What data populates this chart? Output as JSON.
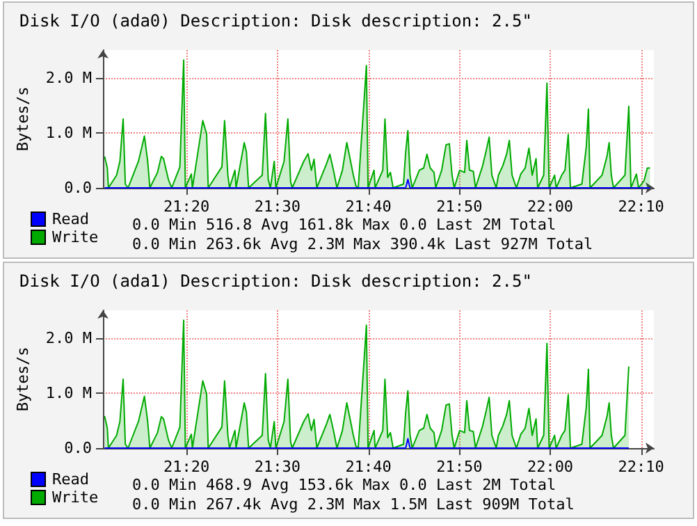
{
  "chart_data": [
    {
      "type": "area",
      "title": "Disk I/O (ada0) Description: Disk description: 2.5\"",
      "ylabel": "Bytes/s",
      "x": [
        21.183,
        21.188,
        21.19,
        21.205,
        21.211,
        21.217,
        21.221,
        21.226,
        21.245,
        21.251,
        21.256,
        21.262,
        21.266,
        21.28,
        21.287,
        21.291,
        21.3,
        21.306,
        21.321,
        21.328,
        21.331,
        21.342,
        21.344,
        21.363,
        21.37,
        21.373,
        21.398,
        21.403,
        21.409,
        21.412,
        21.422,
        21.424,
        21.439,
        21.443,
        21.447,
        21.472,
        21.478,
        21.483,
        21.487,
        21.494,
        21.497,
        21.512,
        21.519,
        21.524,
        21.527,
        21.548,
        21.556,
        21.562,
        21.567,
        21.572,
        21.59,
        21.596,
        21.603,
        21.609,
        21.619,
        21.627,
        21.633,
        21.639,
        21.644,
        21.648,
        21.663,
        21.666,
        21.677,
        21.679,
        21.693,
        21.697,
        21.702,
        21.707,
        21.712,
        21.731,
        21.735,
        21.739,
        21.743,
        21.747,
        21.76,
        21.768,
        21.774,
        21.78,
        21.787,
        21.79,
        21.801,
        21.809,
        21.815,
        21.82,
        21.824,
        21.834,
        21.843,
        21.847,
        21.852,
        21.859,
        21.863,
        21.876,
        21.882,
        21.888,
        21.893,
        21.901,
        21.905,
        21.913,
        21.92,
        21.925,
        21.93,
        21.938,
        21.946,
        21.954,
        21.961,
        21.967,
        21.974,
        21.977,
        21.988,
        21.994,
        21.998,
        22.008,
        22.011,
        22.021,
        22.027,
        22.033,
        22.037,
        22.058,
        22.066,
        22.07,
        22.073,
        22.095,
        22.104,
        22.108,
        22.112,
        22.116,
        22.137,
        22.144,
        22.148,
        22.158,
        22.162,
        22.172,
        22.178,
        22.183
      ],
      "series": [
        {
          "name": "Read",
          "type": "line",
          "color": "#0000ff",
          "values": [
            0,
            0,
            0,
            0,
            0,
            0,
            0,
            0,
            0,
            0,
            0,
            0,
            0,
            0,
            0,
            0,
            0,
            0,
            0,
            0,
            0,
            0,
            0,
            0,
            0,
            0,
            0,
            0,
            0,
            0,
            0,
            0,
            0,
            0,
            0,
            0,
            0,
            0,
            0,
            0,
            0,
            0,
            0,
            0,
            0,
            0,
            0,
            0,
            0,
            0,
            0,
            0,
            0,
            0,
            0,
            0,
            0,
            0,
            0,
            0,
            0,
            0,
            0,
            0,
            0,
            0,
            0,
            0,
            0,
            0,
            0,
            150000,
            0,
            0,
            0,
            0,
            0,
            0,
            0,
            0,
            0,
            0,
            0,
            0,
            0,
            0,
            0,
            0,
            0,
            0,
            0,
            0,
            0,
            0,
            0,
            0,
            0,
            0,
            0,
            0,
            0,
            0,
            0,
            0,
            0,
            0,
            0,
            0,
            0,
            0,
            0,
            0,
            0,
            0,
            0,
            0,
            0,
            0,
            0,
            0,
            0,
            0,
            0,
            0,
            0,
            0,
            0,
            0,
            0,
            0,
            0,
            0,
            0,
            0
          ]
        },
        {
          "name": "Write",
          "color": "#00aa00",
          "values": [
            570000,
            360000,
            0,
            230000,
            480000,
            1250000,
            70000,
            0,
            480000,
            730000,
            940000,
            480000,
            0,
            280000,
            570000,
            530000,
            150000,
            0,
            380000,
            2320000,
            0,
            250000,
            0,
            1220000,
            980000,
            0,
            380000,
            1220000,
            230000,
            0,
            320000,
            0,
            820000,
            650000,
            0,
            230000,
            1350000,
            150000,
            0,
            480000,
            0,
            480000,
            1250000,
            110000,
            0,
            480000,
            620000,
            320000,
            520000,
            0,
            440000,
            610000,
            300000,
            0,
            320000,
            820000,
            530000,
            230000,
            30000,
            0,
            2220000,
            0,
            320000,
            0,
            320000,
            1250000,
            190000,
            280000,
            0,
            70000,
            650000,
            1040000,
            230000,
            0,
            320000,
            360000,
            610000,
            360000,
            280000,
            0,
            320000,
            780000,
            800000,
            230000,
            0,
            320000,
            280000,
            860000,
            320000,
            300000,
            0,
            400000,
            650000,
            920000,
            230000,
            0,
            230000,
            400000,
            610000,
            860000,
            230000,
            0,
            250000,
            360000,
            720000,
            230000,
            530000,
            0,
            230000,
            1900000,
            0,
            230000,
            0,
            230000,
            320000,
            970000,
            0,
            70000,
            730000,
            1430000,
            0,
            230000,
            570000,
            820000,
            230000,
            0,
            230000,
            1480000,
            0,
            250000,
            0,
            130000,
            360000,
            360000
          ]
        }
      ],
      "xlim": [
        21.18,
        22.19
      ],
      "xticks": [
        {
          "value": 21.3333,
          "label": "21:20"
        },
        {
          "value": 21.5,
          "label": "21:30"
        },
        {
          "value": 21.6667,
          "label": "21:40"
        },
        {
          "value": 21.8333,
          "label": "21:50"
        },
        {
          "value": 22,
          "label": "22:00"
        },
        {
          "value": 22.1667,
          "label": "22:10"
        }
      ],
      "ylim": [
        0,
        2500000
      ],
      "yticks": [
        {
          "value": 0,
          "label": "0.0"
        },
        {
          "value": 1000000,
          "label": "1.0 M"
        },
        {
          "value": 2000000,
          "label": "2.0 M"
        }
      ],
      "grid": true,
      "legend": "bottom left",
      "annotations": [
        "0.0 Min 516.8 Avg 161.8k Max 0.0 Last 2M Total",
        "0.0 Min 263.6k Avg 2.3M Max 390.4k Last 927M Total"
      ]
    },
    {
      "type": "area",
      "title": "Disk I/O (ada1) Description: Disk description: 2.5\"",
      "ylabel": "Bytes/s",
      "x": [
        21.183,
        21.188,
        21.19,
        21.205,
        21.211,
        21.217,
        21.221,
        21.226,
        21.245,
        21.251,
        21.256,
        21.262,
        21.266,
        21.28,
        21.287,
        21.291,
        21.3,
        21.306,
        21.321,
        21.328,
        21.331,
        21.342,
        21.344,
        21.363,
        21.37,
        21.373,
        21.398,
        21.403,
        21.409,
        21.412,
        21.422,
        21.424,
        21.439,
        21.443,
        21.447,
        21.472,
        21.478,
        21.483,
        21.487,
        21.494,
        21.497,
        21.512,
        21.519,
        21.524,
        21.527,
        21.548,
        21.556,
        21.562,
        21.567,
        21.572,
        21.59,
        21.596,
        21.603,
        21.609,
        21.619,
        21.627,
        21.633,
        21.639,
        21.644,
        21.648,
        21.663,
        21.666,
        21.677,
        21.679,
        21.693,
        21.697,
        21.702,
        21.707,
        21.712,
        21.731,
        21.735,
        21.739,
        21.743,
        21.747,
        21.76,
        21.768,
        21.774,
        21.78,
        21.787,
        21.79,
        21.801,
        21.809,
        21.815,
        21.82,
        21.824,
        21.834,
        21.843,
        21.847,
        21.852,
        21.859,
        21.863,
        21.876,
        21.882,
        21.888,
        21.893,
        21.901,
        21.905,
        21.913,
        21.92,
        21.925,
        21.93,
        21.938,
        21.946,
        21.954,
        21.961,
        21.967,
        21.974,
        21.977,
        21.988,
        21.994,
        21.998,
        22.008,
        22.011,
        22.021,
        22.027,
        22.033,
        22.037,
        22.058,
        22.066,
        22.07,
        22.073,
        22.095,
        22.104,
        22.108,
        22.112,
        22.116,
        22.137,
        22.144
      ],
      "series": [
        {
          "name": "Read",
          "type": "line",
          "color": "#0000ff",
          "values": [
            0,
            0,
            0,
            0,
            0,
            0,
            0,
            0,
            0,
            0,
            0,
            0,
            0,
            0,
            0,
            0,
            0,
            0,
            0,
            0,
            0,
            0,
            0,
            0,
            0,
            0,
            0,
            0,
            0,
            0,
            0,
            0,
            0,
            0,
            0,
            0,
            0,
            0,
            0,
            0,
            0,
            0,
            0,
            0,
            0,
            0,
            0,
            0,
            0,
            0,
            0,
            0,
            0,
            0,
            0,
            0,
            0,
            0,
            0,
            0,
            0,
            0,
            0,
            0,
            0,
            0,
            0,
            0,
            0,
            0,
            0,
            170000,
            0,
            0,
            0,
            0,
            0,
            0,
            0,
            0,
            0,
            0,
            0,
            0,
            0,
            0,
            0,
            0,
            0,
            0,
            0,
            0,
            0,
            0,
            0,
            0,
            0,
            0,
            0,
            0,
            0,
            0,
            0,
            0,
            0,
            0,
            0,
            0,
            0,
            0,
            0,
            0,
            0,
            0,
            0,
            0,
            0,
            0,
            0,
            0,
            0,
            0,
            0,
            0,
            0,
            0,
            0,
            0
          ]
        },
        {
          "name": "Write",
          "color": "#00aa00",
          "values": [
            580000,
            360000,
            0,
            230000,
            480000,
            1250000,
            70000,
            0,
            480000,
            730000,
            940000,
            480000,
            0,
            280000,
            570000,
            530000,
            150000,
            0,
            380000,
            2320000,
            0,
            250000,
            0,
            1220000,
            980000,
            0,
            380000,
            1220000,
            230000,
            0,
            320000,
            0,
            820000,
            650000,
            0,
            230000,
            1350000,
            150000,
            0,
            480000,
            0,
            480000,
            1250000,
            110000,
            0,
            480000,
            620000,
            320000,
            520000,
            0,
            440000,
            610000,
            300000,
            0,
            320000,
            820000,
            530000,
            230000,
            30000,
            0,
            2230000,
            0,
            320000,
            0,
            320000,
            1250000,
            190000,
            280000,
            0,
            70000,
            650000,
            1040000,
            230000,
            0,
            320000,
            360000,
            610000,
            360000,
            280000,
            0,
            320000,
            780000,
            800000,
            230000,
            0,
            320000,
            280000,
            860000,
            320000,
            300000,
            0,
            400000,
            650000,
            920000,
            230000,
            0,
            230000,
            400000,
            610000,
            860000,
            230000,
            0,
            250000,
            360000,
            720000,
            230000,
            530000,
            0,
            230000,
            1900000,
            0,
            230000,
            0,
            230000,
            320000,
            970000,
            0,
            70000,
            730000,
            1430000,
            0,
            230000,
            570000,
            820000,
            230000,
            0,
            230000,
            1480000
          ]
        }
      ],
      "xlim": [
        21.18,
        22.19
      ],
      "xticks": [
        {
          "value": 21.3333,
          "label": "21:20"
        },
        {
          "value": 21.5,
          "label": "21:30"
        },
        {
          "value": 21.6667,
          "label": "21:40"
        },
        {
          "value": 21.8333,
          "label": "21:50"
        },
        {
          "value": 22,
          "label": "22:00"
        },
        {
          "value": 22.1667,
          "label": "22:10"
        }
      ],
      "ylim": [
        0,
        2500000
      ],
      "yticks": [
        {
          "value": 0,
          "label": "0.0"
        },
        {
          "value": 1000000,
          "label": "1.0 M"
        },
        {
          "value": 2000000,
          "label": "2.0 M"
        }
      ],
      "grid": true,
      "legend": "bottom left",
      "annotations": [
        "0.0 Min 468.9 Avg 153.6k Max 0.0 Last 2M Total",
        "0.0 Min 267.4k Avg 2.3M Max 1.5M Last 909M Total"
      ]
    }
  ]
}
